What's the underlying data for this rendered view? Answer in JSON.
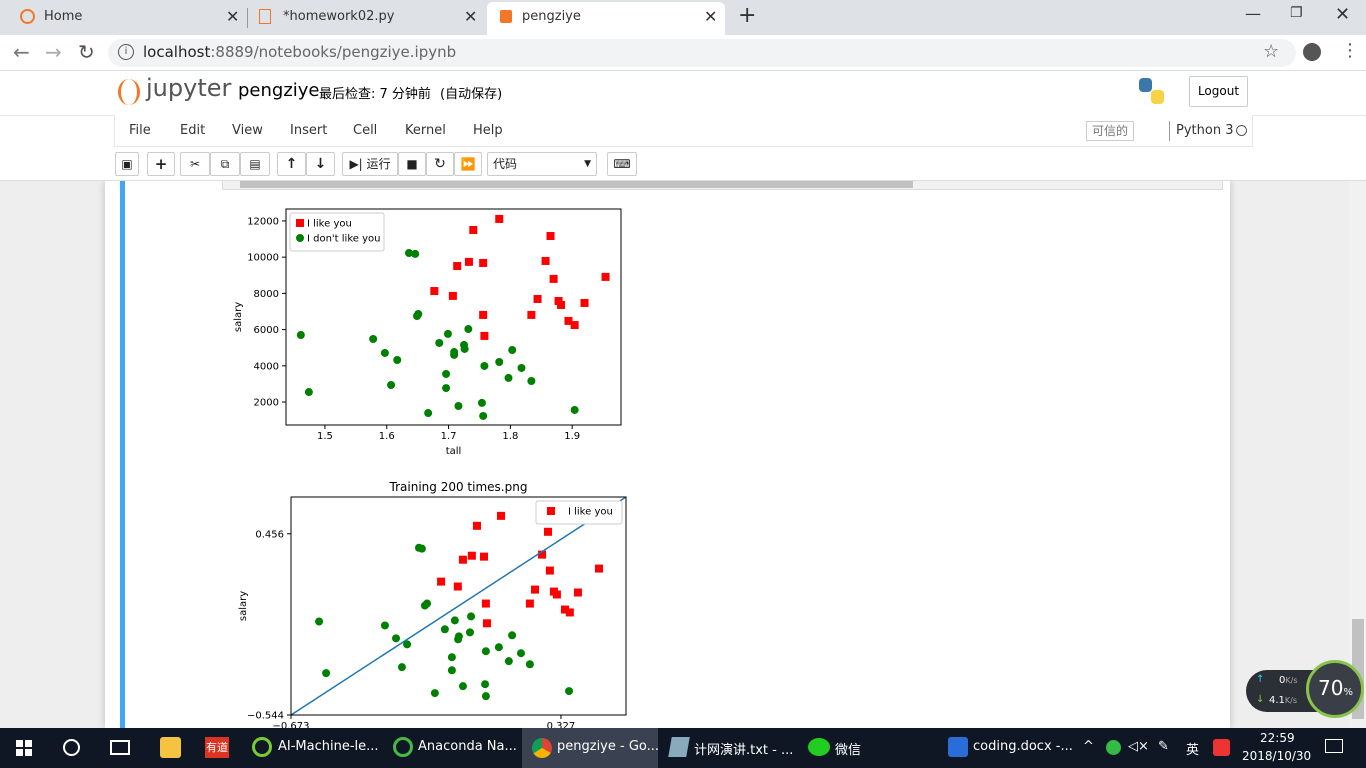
{
  "browser": {
    "tabs": [
      "Home",
      "*homework02.py",
      "pengziye"
    ],
    "url_host": "localhost",
    "url_path": ":8889/notebooks/pengziye.ipynb"
  },
  "jupyter": {
    "logo": "jupyter",
    "notebook": "pengziye",
    "checkpoint": "最后检查: 7 分钟前",
    "autosave": "(自动保存)",
    "logout": "Logout",
    "menu": [
      "File",
      "Edit",
      "View",
      "Insert",
      "Cell",
      "Kernel",
      "Help"
    ],
    "trusted": "可信的",
    "kernel": "Python 3",
    "run": "运行",
    "cell_type": "代码"
  },
  "chart_data": [
    {
      "type": "scatter",
      "xlabel": "tall",
      "ylabel": "salary",
      "legend": "upper left",
      "xlim": [
        1.437,
        1.979
      ],
      "ylim": [
        730,
        12660
      ],
      "xticks": [
        1.5,
        1.6,
        1.7,
        1.8,
        1.9
      ],
      "yticks": [
        2000,
        4000,
        6000,
        8000,
        10000,
        12000
      ],
      "series": [
        {
          "name": "I like you",
          "color": "#ff0000",
          "marker": "s",
          "x": [
            1.782,
            1.74,
            1.865,
            1.733,
            1.756,
            1.714,
            1.857,
            1.954,
            1.87,
            1.677,
            1.707,
            1.844,
            1.92,
            1.878,
            1.882,
            1.756,
            1.834,
            1.894,
            1.904,
            1.758
          ],
          "y": [
            12110,
            11500,
            11170,
            9740,
            9680,
            9510,
            9790,
            8910,
            8800,
            8130,
            7860,
            7690,
            7470,
            7580,
            7360,
            6810,
            6810,
            6480,
            6250,
            5650
          ]
        },
        {
          "name": "I don't like you",
          "color": "#008000",
          "marker": "o",
          "x": [
            1.636,
            1.646,
            1.461,
            1.651,
            1.649,
            1.578,
            1.699,
            1.732,
            1.685,
            1.725,
            1.726,
            1.597,
            1.709,
            1.709,
            1.617,
            1.803,
            1.782,
            1.758,
            1.818,
            1.696,
            1.797,
            1.834,
            1.607,
            1.696,
            1.474,
            1.754,
            1.716,
            1.904,
            1.667,
            1.756
          ],
          "y": [
            10230,
            10180,
            5700,
            6860,
            6750,
            5480,
            5760,
            6030,
            5260,
            5150,
            4930,
            4710,
            4760,
            4600,
            4320,
            4870,
            4210,
            3990,
            3880,
            3550,
            3330,
            3160,
            2940,
            2770,
            2550,
            1950,
            1780,
            1560,
            1390,
            1230
          ]
        }
      ]
    },
    {
      "type": "scatter",
      "title": "Training 200 times.png",
      "ylabel": "salary",
      "legend": "upper right",
      "xlim": [
        -0.673,
        0.568
      ],
      "ylim": [
        -0.544,
        0.659
      ],
      "xticks": [
        {
          "value": -0.673,
          "label": "−0.673"
        },
        0.327
      ],
      "yticks": [
        {
          "value": -0.544,
          "label": "−0.544"
        },
        0.456
      ],
      "line": {
        "color": "#1f77b4",
        "x": [
          -0.673,
          0.568
        ],
        "y": [
          -0.544,
          0.659
        ]
      },
      "series": [
        {
          "name": "I like you",
          "color": "#ff0000",
          "marker": "s",
          "x": [
            0.105,
            0.016,
            0.279,
            0.257,
            -0.003,
            0.042,
            -0.036,
            0.468,
            0.286,
            -0.117,
            -0.055,
            0.231,
            0.39,
            0.301,
            0.312,
            0.049,
            0.212,
            0.342,
            0.36,
            0.053
          ],
          "y": [
            0.555,
            0.5,
            0.467,
            0.341,
            0.335,
            0.33,
            0.313,
            0.264,
            0.253,
            0.192,
            0.165,
            0.148,
            0.132,
            0.137,
            0.121,
            0.071,
            0.071,
            0.038,
            0.022,
            -0.038
          ]
        },
        {
          "color": "#008000",
          "marker": "o",
          "x": [
            -0.199,
            -0.188,
            -0.569,
            -0.169,
            -0.177,
            -0.325,
            -0.066,
            -0.006,
            -0.103,
            -0.051,
            -0.01,
            -0.284,
            -0.054,
            -0.243,
            0.146,
            0.097,
            0.049,
            0.179,
            -0.077,
            0.134,
            0.212,
            -0.262,
            -0.077,
            -0.543,
            0.046,
            -0.036,
            0.357,
            -0.14,
            0.049
          ],
          "y": [
            0.379,
            0.374,
            -0.028,
            0.071,
            0.06,
            -0.05,
            -0.022,
            0.0,
            -0.071,
            -0.11,
            -0.088,
            -0.121,
            -0.126,
            -0.154,
            -0.104,
            -0.17,
            -0.192,
            -0.203,
            -0.225,
            -0.247,
            -0.264,
            -0.28,
            -0.297,
            -0.313,
            -0.374,
            -0.385,
            -0.412,
            -0.423,
            -0.44
          ]
        }
      ]
    }
  ],
  "net_widget": {
    "up": "0",
    "down": "4.1",
    "unit": "K/s",
    "percent": "70",
    "percent_unit": "%"
  },
  "taskbar": {
    "youdao": "有道",
    "items": [
      "AI-Machine-le...",
      "Anaconda Na...",
      "pengziye - Go...",
      "计网演讲.txt - ...",
      "微信",
      "coding.docx -..."
    ],
    "ime": "英",
    "time": "22:59",
    "date": "2018/10/30"
  }
}
